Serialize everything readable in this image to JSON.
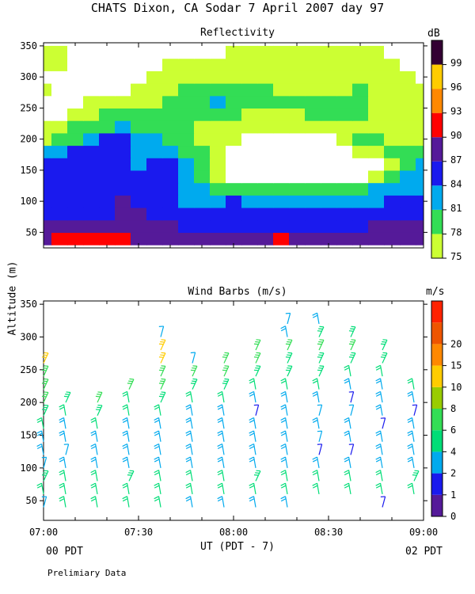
{
  "title": "CHATS Dixon, CA  Sodar   7 April 2007  day  97",
  "footer_note": "Prelimiary Data",
  "colors": {
    "band_75": "#ccff33",
    "band_78": "#33dd55",
    "band_81": "#00aaee",
    "band_84": "#1a1aee",
    "band_87": "#551a99",
    "band_90": "#ff0000",
    "band_93": "#ff8800",
    "band_96": "#ffcc00",
    "band_99": "#330033"
  },
  "chart_data": [
    {
      "type": "heatmap",
      "title": "Reflectivity",
      "colorbar_label": "dB",
      "ylim": [
        25,
        355
      ],
      "y_ticks": [
        50,
        100,
        150,
        200,
        250,
        300,
        350
      ],
      "xlim": [
        0,
        120
      ],
      "colorbar_levels": [
        "75",
        "78",
        "81",
        "84",
        "87",
        "90",
        "93",
        "96",
        "99"
      ],
      "colorbar_colors": [
        "#ccff33",
        "#33dd55",
        "#00aaee",
        "#1a1aee",
        "#551a99",
        "#ff0000",
        "#ff8800",
        "#ffcc00",
        "#330033"
      ],
      "x_times": [
        0,
        5,
        10,
        15,
        20,
        25,
        30,
        35,
        40,
        45,
        50,
        55,
        60,
        65,
        70,
        75,
        80,
        85,
        90,
        95,
        100,
        105,
        110,
        115,
        120
      ],
      "y_levels": [
        40,
        60,
        80,
        100,
        120,
        140,
        160,
        180,
        200,
        220,
        240,
        260,
        280,
        300,
        320,
        340
      ],
      "db_values": [
        [
          89,
          90,
          91,
          91,
          92,
          91,
          89,
          89,
          88,
          88,
          88,
          88,
          88,
          88,
          88,
          90,
          88,
          88,
          88,
          88,
          88,
          88,
          88,
          89,
          88
        ],
        [
          87,
          88,
          88,
          88,
          88,
          88,
          88,
          88,
          87,
          86,
          86,
          86,
          86,
          86,
          86,
          86,
          86,
          86,
          86,
          86,
          86,
          87,
          87,
          87,
          87
        ],
        [
          85,
          86,
          85,
          85,
          86,
          88,
          87,
          86,
          85,
          84,
          84,
          84,
          84,
          84,
          84,
          84,
          84,
          84,
          84,
          84,
          84,
          85,
          86,
          86,
          86
        ],
        [
          84,
          84,
          84,
          84,
          85,
          87,
          86,
          85,
          84,
          82,
          82,
          82,
          84,
          82,
          82,
          82,
          82,
          82,
          82,
          82,
          82,
          83,
          84,
          84,
          84
        ],
        [
          84,
          84,
          84,
          84,
          85,
          86,
          85,
          85,
          84,
          82,
          81,
          80,
          80,
          80,
          80,
          80,
          80,
          80,
          80,
          80,
          80,
          81,
          82,
          82,
          82
        ],
        [
          85,
          85,
          85,
          85,
          85,
          85,
          84,
          85,
          84,
          82,
          79,
          75,
          72,
          72,
          72,
          72,
          72,
          72,
          72,
          72,
          72,
          76,
          80,
          81,
          81
        ],
        [
          84,
          84,
          84,
          84,
          85,
          85,
          82,
          84,
          84,
          82,
          79,
          75,
          72,
          72,
          72,
          72,
          72,
          72,
          72,
          72,
          72,
          74,
          77,
          80,
          81
        ],
        [
          82,
          82,
          84,
          84,
          84,
          84,
          82,
          82,
          82,
          80,
          78,
          75,
          72,
          72,
          72,
          72,
          72,
          72,
          72,
          72,
          75,
          77,
          78,
          80,
          80
        ],
        [
          77,
          78,
          79,
          82,
          84,
          84,
          82,
          81,
          80,
          79,
          77,
          76,
          75,
          72,
          72,
          72,
          72,
          72,
          72,
          76,
          79,
          78,
          77,
          77,
          77
        ],
        [
          76,
          77,
          78,
          79,
          80,
          81,
          80,
          79,
          78,
          78,
          77,
          77,
          76,
          75,
          75,
          75,
          75,
          76,
          77,
          77,
          77,
          77,
          77,
          76,
          76
        ],
        [
          74,
          74,
          76,
          77,
          78,
          78,
          78,
          79,
          79,
          79,
          79,
          78,
          78,
          77,
          77,
          77,
          77,
          78,
          78,
          78,
          78,
          77,
          77,
          76,
          76
        ],
        [
          74,
          74,
          74,
          75,
          76,
          77,
          77,
          77,
          78,
          79,
          80,
          81,
          80,
          78,
          78,
          78,
          78,
          78,
          78,
          78,
          78,
          77,
          77,
          76,
          76
        ],
        [
          76,
          74,
          74,
          74,
          74,
          74,
          75,
          76,
          77,
          78,
          78,
          79,
          79,
          78,
          78,
          77,
          77,
          77,
          77,
          77,
          78,
          77,
          77,
          76,
          76
        ],
        [
          72,
          72,
          74,
          74,
          74,
          74,
          74,
          75,
          76,
          76,
          76,
          77,
          77,
          77,
          77,
          76,
          76,
          76,
          76,
          76,
          76,
          76,
          76,
          75,
          74
        ],
        [
          75,
          75,
          74,
          72,
          72,
          74,
          74,
          74,
          75,
          75,
          75,
          75,
          75,
          75,
          75,
          75,
          75,
          75,
          75,
          75,
          75,
          75,
          75,
          74,
          74
        ],
        [
          75,
          75,
          74,
          74,
          74,
          74,
          74,
          74,
          74,
          74,
          74,
          74,
          75,
          75,
          75,
          75,
          75,
          75,
          75,
          75,
          75,
          75,
          74,
          74,
          74
        ]
      ]
    },
    {
      "type": "scatter",
      "title": "Wind Barbs (m/s)",
      "colorbar_label": "m/s",
      "ylabel": "Altitude (m)",
      "xlabel": "UT  (PDT - 7)",
      "ylim": [
        20,
        355
      ],
      "y_ticks": [
        50,
        100,
        150,
        200,
        250,
        300,
        350
      ],
      "xlim": [
        0,
        120
      ],
      "x_ticks": [
        {
          "value": 0,
          "label": "07:00"
        },
        {
          "value": 30,
          "label": "07:30"
        },
        {
          "value": 60,
          "label": "08:00"
        },
        {
          "value": 90,
          "label": "08:30"
        },
        {
          "value": 120,
          "label": "09:00"
        }
      ],
      "x_sub_left": "00 PDT",
      "x_sub_right": "02 PDT",
      "colorbar_levels": [
        "0",
        "1",
        "2",
        "4",
        "6",
        "8",
        "10",
        "15",
        "20"
      ],
      "colorbar_colors": [
        "#551a99",
        "#1a1aee",
        "#00aaee",
        "#00dd77",
        "#33dd55",
        "#99cc00",
        "#ffcc00",
        "#ff8800",
        "#ee5500",
        "#ff2200"
      ],
      "barb_times": [
        0,
        7,
        17,
        27,
        37,
        47,
        57,
        67,
        77,
        87,
        97,
        107,
        117
      ],
      "barb_levels": [
        40,
        60,
        80,
        100,
        120,
        140,
        160,
        180,
        200,
        220,
        240,
        260,
        280,
        300,
        320
      ],
      "speed_columns": [
        [
          2,
          4,
          5,
          2,
          3,
          3,
          4,
          5,
          6,
          6,
          6,
          14,
          0,
          0,
          0
        ],
        [
          4,
          4,
          4,
          3,
          2,
          3,
          3,
          4,
          5,
          0,
          0,
          0,
          0,
          0,
          0
        ],
        [
          4,
          4,
          4,
          3,
          3,
          3,
          4,
          5,
          6,
          0,
          0,
          0,
          0,
          0,
          0
        ],
        [
          4,
          4,
          5,
          3,
          3,
          3,
          3,
          4,
          4,
          6,
          0,
          0,
          0,
          0,
          0
        ],
        [
          4,
          4,
          4,
          3,
          3,
          3,
          3,
          4,
          5,
          6,
          6,
          11,
          13,
          2,
          0
        ],
        [
          3,
          4,
          4,
          3,
          3,
          3,
          3,
          3,
          4,
          5,
          6,
          2,
          0,
          0,
          0
        ],
        [
          3,
          4,
          4,
          3,
          3,
          3,
          3,
          3,
          4,
          5,
          6,
          6,
          0,
          0,
          0
        ],
        [
          3,
          4,
          5,
          3,
          3,
          3,
          3,
          1,
          3,
          4,
          5,
          6,
          7,
          0,
          0
        ],
        [
          3,
          4,
          4,
          3,
          3,
          3,
          3,
          3,
          3,
          4,
          5,
          5,
          6,
          3,
          2
        ],
        [
          0,
          4,
          4,
          3,
          1,
          2,
          3,
          2,
          3,
          4,
          5,
          5,
          6,
          5,
          3
        ],
        [
          0,
          4,
          4,
          3,
          1,
          3,
          3,
          2,
          1,
          3,
          4,
          5,
          6,
          5,
          0
        ],
        [
          1,
          4,
          4,
          3,
          3,
          3,
          1,
          3,
          3,
          3,
          4,
          5,
          5,
          0,
          0
        ],
        [
          0,
          4,
          5,
          3,
          3,
          3,
          3,
          1,
          3,
          4,
          0,
          0,
          0,
          0,
          0
        ]
      ]
    }
  ]
}
